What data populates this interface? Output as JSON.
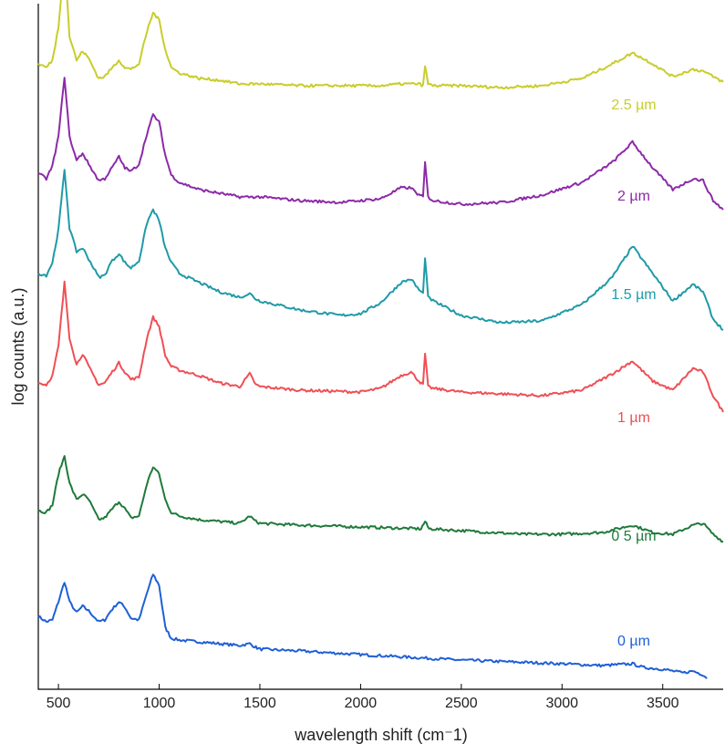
{
  "chart_data": {
    "type": "line",
    "title": "",
    "xlabel": "wavelength shift (cm⁻1)",
    "ylabel": "log counts (a.u.)",
    "xlim": [
      400,
      3800
    ],
    "x_ticks": [
      "500",
      "1000",
      "1500",
      "2000",
      "2500",
      "3000",
      "3500"
    ],
    "x_tick_values": [
      500,
      1000,
      1500,
      2000,
      2500,
      3000,
      3500
    ],
    "grid": false,
    "legend": "inline labels at right",
    "series": [
      {
        "name": "0 µm",
        "color": "#1f5fd6",
        "offset": 0,
        "points": [
          [
            400,
            44
          ],
          [
            440,
            38
          ],
          [
            470,
            40
          ],
          [
            500,
            60
          ],
          [
            530,
            82
          ],
          [
            555,
            60
          ],
          [
            590,
            48
          ],
          [
            620,
            55
          ],
          [
            650,
            50
          ],
          [
            700,
            38
          ],
          [
            730,
            40
          ],
          [
            760,
            50
          ],
          [
            800,
            60
          ],
          [
            830,
            54
          ],
          [
            860,
            42
          ],
          [
            900,
            40
          ],
          [
            940,
            70
          ],
          [
            970,
            90
          ],
          [
            1000,
            78
          ],
          [
            1030,
            32
          ],
          [
            1060,
            20
          ],
          [
            1100,
            18
          ],
          [
            1200,
            16
          ],
          [
            1300,
            14
          ],
          [
            1400,
            12
          ],
          [
            1450,
            14
          ],
          [
            1480,
            10
          ],
          [
            1500,
            8
          ],
          [
            1700,
            6
          ],
          [
            2000,
            2
          ],
          [
            2500,
            -4
          ],
          [
            3000,
            -8
          ],
          [
            3200,
            -10
          ],
          [
            3350,
            -8
          ],
          [
            3400,
            -12
          ],
          [
            3500,
            -14
          ],
          [
            3600,
            -18
          ],
          [
            3650,
            -16
          ],
          [
            3700,
            -20
          ],
          [
            3720,
            -24
          ]
        ]
      },
      {
        "name": "0 5 µm",
        "color": "#1f7a3a",
        "offset": 160,
        "points": [
          [
            400,
            0
          ],
          [
            440,
            -2
          ],
          [
            470,
            6
          ],
          [
            500,
            40
          ],
          [
            530,
            60
          ],
          [
            555,
            30
          ],
          [
            590,
            12
          ],
          [
            620,
            18
          ],
          [
            650,
            12
          ],
          [
            700,
            -10
          ],
          [
            730,
            -8
          ],
          [
            760,
            0
          ],
          [
            800,
            10
          ],
          [
            830,
            2
          ],
          [
            860,
            -8
          ],
          [
            900,
            -6
          ],
          [
            940,
            30
          ],
          [
            970,
            48
          ],
          [
            1000,
            40
          ],
          [
            1030,
            12
          ],
          [
            1060,
            -2
          ],
          [
            1100,
            -6
          ],
          [
            1200,
            -10
          ],
          [
            1300,
            -12
          ],
          [
            1400,
            -14
          ],
          [
            1450,
            -6
          ],
          [
            1480,
            -12
          ],
          [
            1500,
            -14
          ],
          [
            1700,
            -16
          ],
          [
            2000,
            -18
          ],
          [
            2300,
            -20
          ],
          [
            2320,
            -12
          ],
          [
            2340,
            -20
          ],
          [
            2500,
            -22
          ],
          [
            2800,
            -26
          ],
          [
            3000,
            -26
          ],
          [
            3200,
            -24
          ],
          [
            3350,
            -16
          ],
          [
            3450,
            -24
          ],
          [
            3550,
            -26
          ],
          [
            3650,
            -16
          ],
          [
            3700,
            -14
          ],
          [
            3750,
            -26
          ],
          [
            3800,
            -34
          ]
        ]
      },
      {
        "name": "1 µm",
        "color": "#ef4f55",
        "offset": 300,
        "points": [
          [
            400,
            0
          ],
          [
            440,
            -2
          ],
          [
            470,
            8
          ],
          [
            500,
            40
          ],
          [
            530,
            110
          ],
          [
            555,
            50
          ],
          [
            590,
            20
          ],
          [
            620,
            32
          ],
          [
            650,
            18
          ],
          [
            700,
            -2
          ],
          [
            730,
            0
          ],
          [
            760,
            10
          ],
          [
            800,
            22
          ],
          [
            830,
            12
          ],
          [
            860,
            4
          ],
          [
            900,
            6
          ],
          [
            940,
            50
          ],
          [
            970,
            72
          ],
          [
            1000,
            62
          ],
          [
            1030,
            30
          ],
          [
            1060,
            18
          ],
          [
            1100,
            14
          ],
          [
            1200,
            8
          ],
          [
            1300,
            0
          ],
          [
            1400,
            -4
          ],
          [
            1450,
            10
          ],
          [
            1480,
            -2
          ],
          [
            1500,
            -4
          ],
          [
            1700,
            -8
          ],
          [
            2000,
            -10
          ],
          [
            2100,
            -6
          ],
          [
            2200,
            8
          ],
          [
            2250,
            12
          ],
          [
            2290,
            2
          ],
          [
            2310,
            -2
          ],
          [
            2320,
            32
          ],
          [
            2335,
            -4
          ],
          [
            2360,
            -6
          ],
          [
            2500,
            -10
          ],
          [
            2700,
            -12
          ],
          [
            2900,
            -14
          ],
          [
            3100,
            -8
          ],
          [
            3250,
            10
          ],
          [
            3350,
            24
          ],
          [
            3450,
            2
          ],
          [
            3550,
            -8
          ],
          [
            3650,
            16
          ],
          [
            3700,
            12
          ],
          [
            3750,
            -14
          ],
          [
            3800,
            -32
          ]
        ]
      },
      {
        "name": "1.5 µm",
        "color": "#1f9aa8",
        "offset": 420,
        "points": [
          [
            400,
            0
          ],
          [
            440,
            -2
          ],
          [
            470,
            12
          ],
          [
            500,
            48
          ],
          [
            530,
            114
          ],
          [
            555,
            50
          ],
          [
            590,
            24
          ],
          [
            620,
            28
          ],
          [
            650,
            16
          ],
          [
            700,
            -4
          ],
          [
            730,
            -2
          ],
          [
            760,
            12
          ],
          [
            800,
            22
          ],
          [
            830,
            12
          ],
          [
            860,
            6
          ],
          [
            900,
            14
          ],
          [
            940,
            56
          ],
          [
            970,
            70
          ],
          [
            1000,
            58
          ],
          [
            1030,
            28
          ],
          [
            1060,
            12
          ],
          [
            1100,
            0
          ],
          [
            1200,
            -10
          ],
          [
            1300,
            -20
          ],
          [
            1400,
            -26
          ],
          [
            1450,
            -22
          ],
          [
            1480,
            -28
          ],
          [
            1500,
            -30
          ],
          [
            1700,
            -40
          ],
          [
            1900,
            -46
          ],
          [
            2000,
            -44
          ],
          [
            2100,
            -32
          ],
          [
            2200,
            -10
          ],
          [
            2250,
            -6
          ],
          [
            2290,
            -18
          ],
          [
            2310,
            -22
          ],
          [
            2320,
            18
          ],
          [
            2335,
            -26
          ],
          [
            2360,
            -30
          ],
          [
            2500,
            -46
          ],
          [
            2700,
            -54
          ],
          [
            2900,
            -52
          ],
          [
            3100,
            -34
          ],
          [
            3250,
            -4
          ],
          [
            3350,
            30
          ],
          [
            3450,
            0
          ],
          [
            3550,
            -30
          ],
          [
            3650,
            -12
          ],
          [
            3700,
            -20
          ],
          [
            3750,
            -50
          ],
          [
            3800,
            -62
          ]
        ]
      },
      {
        "name": "2 µm",
        "color": "#8c2aa8",
        "offset": 530,
        "points": [
          [
            400,
            0
          ],
          [
            440,
            -6
          ],
          [
            470,
            8
          ],
          [
            500,
            40
          ],
          [
            530,
            106
          ],
          [
            555,
            40
          ],
          [
            590,
            14
          ],
          [
            620,
            22
          ],
          [
            650,
            10
          ],
          [
            700,
            -8
          ],
          [
            730,
            -6
          ],
          [
            760,
            4
          ],
          [
            800,
            18
          ],
          [
            830,
            6
          ],
          [
            860,
            2
          ],
          [
            900,
            10
          ],
          [
            940,
            44
          ],
          [
            970,
            64
          ],
          [
            1000,
            56
          ],
          [
            1030,
            20
          ],
          [
            1060,
            -2
          ],
          [
            1100,
            -10
          ],
          [
            1200,
            -18
          ],
          [
            1300,
            -22
          ],
          [
            1400,
            -26
          ],
          [
            1500,
            -26
          ],
          [
            1700,
            -30
          ],
          [
            1900,
            -32
          ],
          [
            2100,
            -28
          ],
          [
            2200,
            -16
          ],
          [
            2250,
            -16
          ],
          [
            2290,
            -24
          ],
          [
            2310,
            -26
          ],
          [
            2320,
            12
          ],
          [
            2335,
            -26
          ],
          [
            2360,
            -30
          ],
          [
            2500,
            -34
          ],
          [
            2700,
            -32
          ],
          [
            2900,
            -24
          ],
          [
            3100,
            -10
          ],
          [
            3250,
            12
          ],
          [
            3350,
            34
          ],
          [
            3450,
            6
          ],
          [
            3550,
            -18
          ],
          [
            3650,
            -6
          ],
          [
            3700,
            -8
          ],
          [
            3750,
            -30
          ],
          [
            3800,
            -40
          ]
        ]
      },
      {
        "name": "2.5 µm",
        "color": "#c8cd2a",
        "offset": 650,
        "points": [
          [
            400,
            0
          ],
          [
            440,
            -4
          ],
          [
            470,
            4
          ],
          [
            500,
            40
          ],
          [
            530,
            116
          ],
          [
            555,
            30
          ],
          [
            590,
            4
          ],
          [
            620,
            14
          ],
          [
            650,
            6
          ],
          [
            700,
            -16
          ],
          [
            730,
            -14
          ],
          [
            760,
            -6
          ],
          [
            800,
            4
          ],
          [
            830,
            -4
          ],
          [
            860,
            -6
          ],
          [
            900,
            0
          ],
          [
            940,
            36
          ],
          [
            970,
            56
          ],
          [
            1000,
            48
          ],
          [
            1030,
            16
          ],
          [
            1060,
            -4
          ],
          [
            1100,
            -10
          ],
          [
            1200,
            -16
          ],
          [
            1300,
            -18
          ],
          [
            1400,
            -22
          ],
          [
            1500,
            -22
          ],
          [
            1700,
            -24
          ],
          [
            1900,
            -24
          ],
          [
            2100,
            -24
          ],
          [
            2200,
            -22
          ],
          [
            2290,
            -22
          ],
          [
            2310,
            -24
          ],
          [
            2320,
            -2
          ],
          [
            2335,
            -22
          ],
          [
            2360,
            -24
          ],
          [
            2500,
            -24
          ],
          [
            2700,
            -26
          ],
          [
            2900,
            -24
          ],
          [
            3100,
            -16
          ],
          [
            3250,
            0
          ],
          [
            3350,
            12
          ],
          [
            3450,
            0
          ],
          [
            3550,
            -14
          ],
          [
            3650,
            -6
          ],
          [
            3700,
            -8
          ],
          [
            3750,
            -14
          ],
          [
            3800,
            -20
          ]
        ]
      }
    ]
  }
}
